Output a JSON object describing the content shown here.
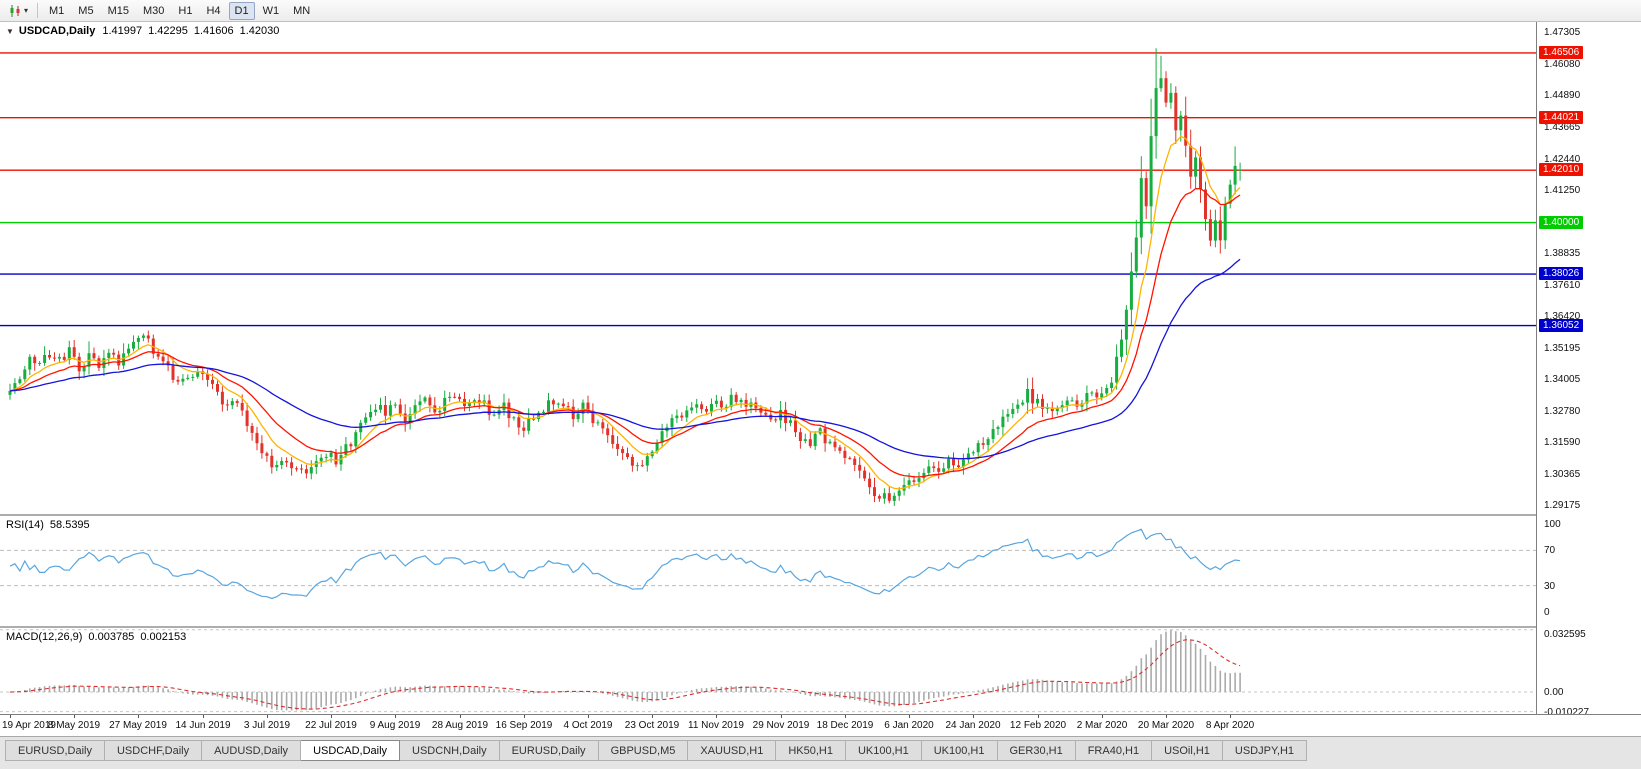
{
  "toolbar": {
    "timeframes": [
      "M1",
      "M5",
      "M15",
      "M30",
      "H1",
      "H4",
      "D1",
      "W1",
      "MN"
    ],
    "active_timeframe": "D1"
  },
  "chart": {
    "symbol_title": "USDCAD,Daily",
    "ohlc": {
      "open": "1.41997",
      "high": "1.42295",
      "low": "1.41606",
      "close": "1.42030"
    }
  },
  "indicators": {
    "rsi": {
      "name": "RSI(14)",
      "value": "58.5395",
      "period": 14,
      "line_color": "#58a6df",
      "levels": [
        70,
        30
      ],
      "scale_labels": [
        "100",
        "70",
        "30",
        "0"
      ],
      "scale_values": [
        100,
        70,
        30,
        0
      ]
    },
    "macd": {
      "name": "MACD(12,26,9)",
      "value_main": "0.003785",
      "value_signal": "0.002153",
      "params": [
        12,
        26,
        9
      ],
      "hist_color": "#ababab",
      "signal_color": "#dd2e2e",
      "scale_labels": [
        "0.032595",
        "0.00",
        "-0.010227"
      ],
      "scale_values": [
        0.032595,
        0,
        -0.010227
      ],
      "range": [
        -0.0115,
        0.0335
      ]
    }
  },
  "chart_data": {
    "type": "candlestick",
    "symbol": "USDCAD",
    "timeframe": "Daily",
    "bars_total": 250,
    "price_range": [
      1.2883,
      1.4769
    ],
    "colors": {
      "bull": "#17ad3f",
      "bear": "#e2332b",
      "ma_fast": "#ffb400",
      "ma_mid": "#ff1400",
      "ma_slow": "#1414dc"
    },
    "price_axis_ticks": [
      "1.47305",
      "1.46080",
      "1.44890",
      "1.43665",
      "1.42440",
      "1.41250",
      "1.40025",
      "1.38835",
      "1.37610",
      "1.36420",
      "1.35195",
      "1.34005",
      "1.32780",
      "1.31590",
      "1.30365",
      "1.29175"
    ],
    "horizontal_levels": [
      {
        "price": 1.46506,
        "label": "1.46506",
        "color": "#ee1100"
      },
      {
        "price": 1.44021,
        "label": "1.44021",
        "color": "#ee1100"
      },
      {
        "price": 1.4201,
        "label": "1.42010",
        "color": "#ee1100"
      },
      {
        "price": 1.4,
        "label": "1.40000",
        "color": "#00cc00"
      },
      {
        "price": 1.38026,
        "label": "1.38026",
        "color": "#0000cc"
      },
      {
        "price": 1.36052,
        "label": "1.36052",
        "color": "#0000cc"
      }
    ],
    "x_labels": [
      {
        "text": "19 Apr 2019",
        "bar": 0
      },
      {
        "text": "8 May 2019",
        "bar": 13
      },
      {
        "text": "27 May 2019",
        "bar": 26
      },
      {
        "text": "14 Jun 2019",
        "bar": 39
      },
      {
        "text": "3 Jul 2019",
        "bar": 52
      },
      {
        "text": "22 Jul 2019",
        "bar": 65
      },
      {
        "text": "9 Aug 2019",
        "bar": 78
      },
      {
        "text": "28 Aug 2019",
        "bar": 91
      },
      {
        "text": "16 Sep 2019",
        "bar": 104
      },
      {
        "text": "4 Oct 2019",
        "bar": 117
      },
      {
        "text": "23 Oct 2019",
        "bar": 130
      },
      {
        "text": "11 Nov 2019",
        "bar": 143
      },
      {
        "text": "29 Nov 2019",
        "bar": 156
      },
      {
        "text": "18 Dec 2019",
        "bar": 169
      },
      {
        "text": "6 Jan 2020",
        "bar": 182
      },
      {
        "text": "24 Jan 2020",
        "bar": 195
      },
      {
        "text": "12 Feb 2020",
        "bar": 208
      },
      {
        "text": "2 Mar 2020",
        "bar": 221
      },
      {
        "text": "20 Mar 2020",
        "bar": 234
      },
      {
        "text": "8 Apr 2020",
        "bar": 247
      }
    ],
    "close_keypoints": [
      [
        0,
        1.3355
      ],
      [
        2,
        1.3395
      ],
      [
        4,
        1.348
      ],
      [
        6,
        1.3455
      ],
      [
        8,
        1.35
      ],
      [
        10,
        1.3468
      ],
      [
        12,
        1.352
      ],
      [
        14,
        1.3445
      ],
      [
        16,
        1.348
      ],
      [
        18,
        1.3452
      ],
      [
        20,
        1.3498
      ],
      [
        22,
        1.347
      ],
      [
        24,
        1.3515
      ],
      [
        26,
        1.3555
      ],
      [
        28,
        1.354
      ],
      [
        30,
        1.3478
      ],
      [
        32,
        1.344
      ],
      [
        34,
        1.3372
      ],
      [
        36,
        1.34
      ],
      [
        38,
        1.3432
      ],
      [
        40,
        1.339
      ],
      [
        42,
        1.334
      ],
      [
        44,
        1.3292
      ],
      [
        46,
        1.3312
      ],
      [
        48,
        1.323
      ],
      [
        50,
        1.3162
      ],
      [
        52,
        1.3102
      ],
      [
        54,
        1.3062
      ],
      [
        56,
        1.3086
      ],
      [
        58,
        1.3046
      ],
      [
        60,
        1.3036
      ],
      [
        62,
        1.307
      ],
      [
        64,
        1.311
      ],
      [
        66,
        1.3086
      ],
      [
        68,
        1.313
      ],
      [
        70,
        1.3192
      ],
      [
        72,
        1.3252
      ],
      [
        74,
        1.33
      ],
      [
        76,
        1.3272
      ],
      [
        78,
        1.3312
      ],
      [
        80,
        1.3252
      ],
      [
        82,
        1.3292
      ],
      [
        84,
        1.3322
      ],
      [
        86,
        1.3282
      ],
      [
        88,
        1.3312
      ],
      [
        90,
        1.3332
      ],
      [
        92,
        1.3292
      ],
      [
        94,
        1.3322
      ],
      [
        96,
        1.3302
      ],
      [
        98,
        1.3262
      ],
      [
        100,
        1.3292
      ],
      [
        102,
        1.3242
      ],
      [
        104,
        1.3216
      ],
      [
        106,
        1.3262
      ],
      [
        108,
        1.3292
      ],
      [
        110,
        1.3322
      ],
      [
        112,
        1.3302
      ],
      [
        114,
        1.3262
      ],
      [
        116,
        1.3292
      ],
      [
        118,
        1.3252
      ],
      [
        120,
        1.3212
      ],
      [
        122,
        1.3152
      ],
      [
        124,
        1.3102
      ],
      [
        126,
        1.3076
      ],
      [
        128,
        1.3056
      ],
      [
        130,
        1.3112
      ],
      [
        132,
        1.3182
      ],
      [
        134,
        1.3232
      ],
      [
        136,
        1.3272
      ],
      [
        138,
        1.3296
      ],
      [
        140,
        1.328
      ],
      [
        142,
        1.3312
      ],
      [
        144,
        1.3292
      ],
      [
        146,
        1.3322
      ],
      [
        148,
        1.3302
      ],
      [
        150,
        1.3322
      ],
      [
        152,
        1.3282
      ],
      [
        154,
        1.3242
      ],
      [
        156,
        1.3272
      ],
      [
        158,
        1.3222
      ],
      [
        160,
        1.3182
      ],
      [
        162,
        1.3152
      ],
      [
        164,
        1.3192
      ],
      [
        166,
        1.3142
      ],
      [
        168,
        1.3122
      ],
      [
        170,
        1.3082
      ],
      [
        172,
        1.3032
      ],
      [
        174,
        1.2982
      ],
      [
        176,
        1.2952
      ],
      [
        178,
        1.2932
      ],
      [
        180,
        1.2962
      ],
      [
        182,
        1.2992
      ],
      [
        184,
        1.3032
      ],
      [
        186,
        1.3072
      ],
      [
        188,
        1.3052
      ],
      [
        190,
        1.3092
      ],
      [
        192,
        1.3062
      ],
      [
        194,
        1.3102
      ],
      [
        196,
        1.3142
      ],
      [
        198,
        1.3182
      ],
      [
        200,
        1.3232
      ],
      [
        202,
        1.3272
      ],
      [
        204,
        1.3312
      ],
      [
        206,
        1.3342
      ],
      [
        208,
        1.3306
      ],
      [
        210,
        1.3276
      ],
      [
        212,
        1.3296
      ],
      [
        214,
        1.3322
      ],
      [
        216,
        1.3306
      ],
      [
        218,
        1.333
      ],
      [
        221,
        1.3342
      ],
      [
        223,
        1.3402
      ],
      [
        225,
        1.3552
      ],
      [
        226,
        1.3682
      ],
      [
        227,
        1.3802
      ],
      [
        228,
        1.3952
      ],
      [
        229,
        1.4152
      ],
      [
        230,
        1.4052
      ],
      [
        231,
        1.4352
      ],
      [
        232,
        1.4522
      ],
      [
        233,
        1.4562
      ],
      [
        234,
        1.4452
      ],
      [
        235,
        1.4482
      ],
      [
        236,
        1.4352
      ],
      [
        237,
        1.4422
      ],
      [
        238,
        1.4282
      ],
      [
        239,
        1.4182
      ],
      [
        240,
        1.4252
      ],
      [
        241,
        1.4122
      ],
      [
        242,
        1.4032
      ],
      [
        243,
        1.3952
      ],
      [
        244,
        1.4012
      ],
      [
        245,
        1.3932
      ],
      [
        246,
        1.4052
      ],
      [
        247,
        1.4142
      ],
      [
        248,
        1.4222
      ],
      [
        249,
        1.4203
      ]
    ],
    "bar_overrides": {
      "232": {
        "h": 1.4668
      },
      "233": {
        "h": 1.464
      },
      "248": {
        "h": 1.4292
      },
      "249": {
        "o": 1.41997,
        "h": 1.42295,
        "l": 1.41606,
        "c": 1.4203
      }
    },
    "current_bar_ohlc": {
      "open": 1.41997,
      "high": 1.42295,
      "low": 1.41606,
      "close": 1.4203
    }
  },
  "tab_bar": {
    "tabs": [
      {
        "label": "EURUSD,Daily",
        "active": false
      },
      {
        "label": "USDCHF,Daily",
        "active": false
      },
      {
        "label": "AUDUSD,Daily",
        "active": false
      },
      {
        "label": "USDCAD,Daily",
        "active": true
      },
      {
        "label": "USDCNH,Daily",
        "active": false
      },
      {
        "label": "EURUSD,Daily",
        "active": false
      },
      {
        "label": "GBPUSD,M5",
        "active": false
      },
      {
        "label": "XAUUSD,H1",
        "active": false
      },
      {
        "label": "HK50,H1",
        "active": false
      },
      {
        "label": "UK100,H1",
        "active": false
      },
      {
        "label": "UK100,H1",
        "active": false
      },
      {
        "label": "GER30,H1",
        "active": false
      },
      {
        "label": "FRA40,H1",
        "active": false
      },
      {
        "label": "USOil,H1",
        "active": false
      },
      {
        "label": "USDJPY,H1",
        "active": false
      }
    ]
  }
}
